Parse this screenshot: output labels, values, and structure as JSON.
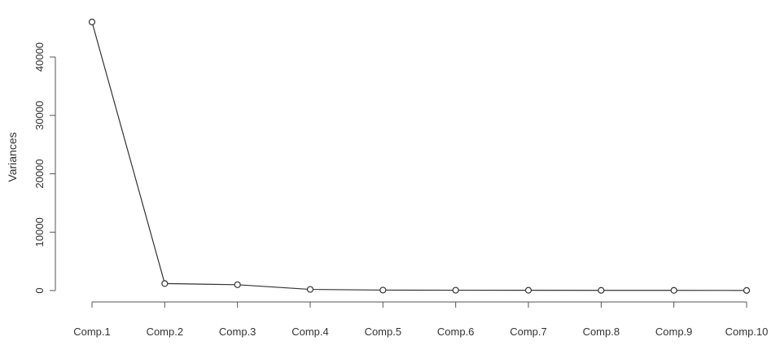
{
  "chart_data": {
    "type": "line",
    "title": "",
    "xlabel": "",
    "ylabel": "Variances",
    "categories": [
      "Comp.1",
      "Comp.2",
      "Comp.3",
      "Comp.4",
      "Comp.5",
      "Comp.6",
      "Comp.7",
      "Comp.8",
      "Comp.9",
      "Comp.10"
    ],
    "values": [
      46000,
      1200,
      1000,
      200,
      80,
      60,
      50,
      40,
      30,
      20
    ],
    "ylim": [
      0,
      46000
    ],
    "yticks": [
      0,
      10000,
      20000,
      30000,
      40000
    ],
    "ytick_labels": [
      "0",
      "10000",
      "20000",
      "30000",
      "40000"
    ],
    "grid": false,
    "marker": "open-circle",
    "colors": {
      "line": "#333333",
      "marker": "#333333",
      "axis": "#555555",
      "text": "#333333"
    }
  }
}
